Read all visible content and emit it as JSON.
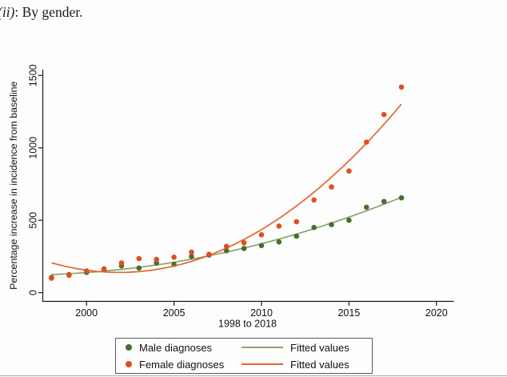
{
  "page": {
    "title_italic": "(ii)",
    "title_rest": ": By gender."
  },
  "chart_data": {
    "type": "scatter",
    "title": "(ii): By gender.",
    "xlabel": "1998 to 2018",
    "ylabel": "Percentage increase in incidence from baseline",
    "x_ticks": [
      2000,
      2005,
      2010,
      2015,
      2020
    ],
    "y_ticks": [
      0,
      500,
      1000,
      1500
    ],
    "xlim": [
      1997.5,
      2020.9
    ],
    "ylim": [
      -60,
      1590
    ],
    "grid": false,
    "legend_position": "bottom",
    "fit": "quadratic",
    "x": [
      1998,
      1999,
      2000,
      2001,
      2002,
      2003,
      2004,
      2005,
      2006,
      2007,
      2008,
      2009,
      2010,
      2011,
      2012,
      2013,
      2014,
      2015,
      2016,
      2017,
      2018
    ],
    "series": [
      {
        "name": "Male diagnoses",
        "fit_label": "Fitted values",
        "dot_color": "#456f30",
        "fit_color": "#8aa46d",
        "values": [
          105,
          125,
          140,
          160,
          185,
          170,
          205,
          195,
          250,
          260,
          290,
          305,
          325,
          350,
          390,
          450,
          470,
          500,
          590,
          630,
          655
        ]
      },
      {
        "name": "Female diagnoses",
        "fit_label": "Fitted values",
        "dot_color": "#df4f1d",
        "fit_color": "#e7632f",
        "values": [
          100,
          120,
          150,
          165,
          205,
          235,
          230,
          245,
          280,
          265,
          320,
          345,
          400,
          460,
          490,
          640,
          730,
          840,
          1040,
          1230,
          1420
        ]
      }
    ],
    "axis_color": "#1a1a1a"
  }
}
